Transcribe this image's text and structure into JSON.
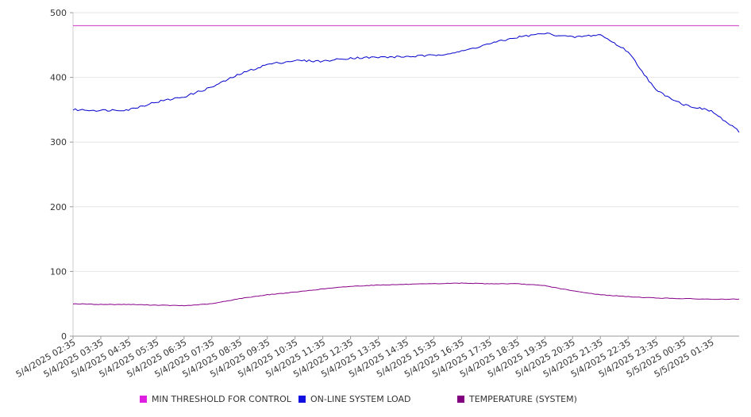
{
  "chart_data": {
    "type": "line",
    "title": "",
    "xlabel": "",
    "ylabel": "",
    "ylim": [
      0,
      500
    ],
    "y_ticks": [
      "0",
      "100",
      "200",
      "300",
      "400",
      "500"
    ],
    "x_ticks": [
      "5/4/2025 02:35",
      "5/4/2025 03:35",
      "5/4/2025 04:35",
      "5/4/2025 05:35",
      "5/4/2025 06:35",
      "5/4/2025 07:35",
      "5/4/2025 08:35",
      "5/4/2025 09:35",
      "5/4/2025 10:35",
      "5/4/2025 11:35",
      "5/4/2025 12:35",
      "5/4/2025 13:35",
      "5/4/2025 14:35",
      "5/4/2025 15:35",
      "5/4/2025 16:35",
      "5/4/2025 17:35",
      "5/4/2025 18:35",
      "5/4/2025 19:35",
      "5/4/2025 20:35",
      "5/4/2025 21:35",
      "5/4/2025 22:35",
      "5/4/2025 23:35",
      "5/5/2025 00:35",
      "5/5/2025 01:35"
    ],
    "x": [
      "5/4/2025 02:35",
      "5/4/2025 03:35",
      "5/4/2025 04:35",
      "5/4/2025 05:35",
      "5/4/2025 06:35",
      "5/4/2025 07:35",
      "5/4/2025 08:35",
      "5/4/2025 09:35",
      "5/4/2025 10:35",
      "5/4/2025 11:35",
      "5/4/2025 12:35",
      "5/4/2025 13:35",
      "5/4/2025 14:35",
      "5/4/2025 15:35",
      "5/4/2025 16:35",
      "5/4/2025 17:35",
      "5/4/2025 18:35",
      "5/4/2025 19:35",
      "5/4/2025 20:35",
      "5/4/2025 21:35",
      "5/4/2025 22:35",
      "5/4/2025 23:35",
      "5/5/2025 00:35",
      "5/5/2025 01:35",
      "5/5/2025 02:35"
    ],
    "series": [
      {
        "name": "MIN THRESHOLD FOR CONTROL",
        "color": "#cc33cc",
        "values": [
          480,
          480,
          480,
          480,
          480,
          480,
          480,
          480,
          480,
          480,
          480,
          480,
          480,
          480,
          480,
          480,
          480,
          480,
          480,
          480,
          480,
          480,
          480,
          480,
          480
        ]
      },
      {
        "name": "ON-LINE SYSTEM LOAD",
        "color": "#0000cc",
        "values": [
          350,
          349,
          350,
          362,
          370,
          385,
          405,
          420,
          426,
          425,
          430,
          431,
          432,
          434,
          440,
          452,
          462,
          468,
          462,
          466,
          440,
          380,
          358,
          348,
          316
        ]
      },
      {
        "name": "TEMPERATURE (SYSTEM)",
        "color": "#880088",
        "values": [
          50,
          49,
          49,
          48,
          47,
          50,
          58,
          64,
          68,
          73,
          77,
          79,
          80,
          81,
          82,
          81,
          81,
          78,
          70,
          64,
          61,
          59,
          58,
          57,
          57
        ]
      }
    ],
    "legend_position": "bottom",
    "grid": true
  }
}
